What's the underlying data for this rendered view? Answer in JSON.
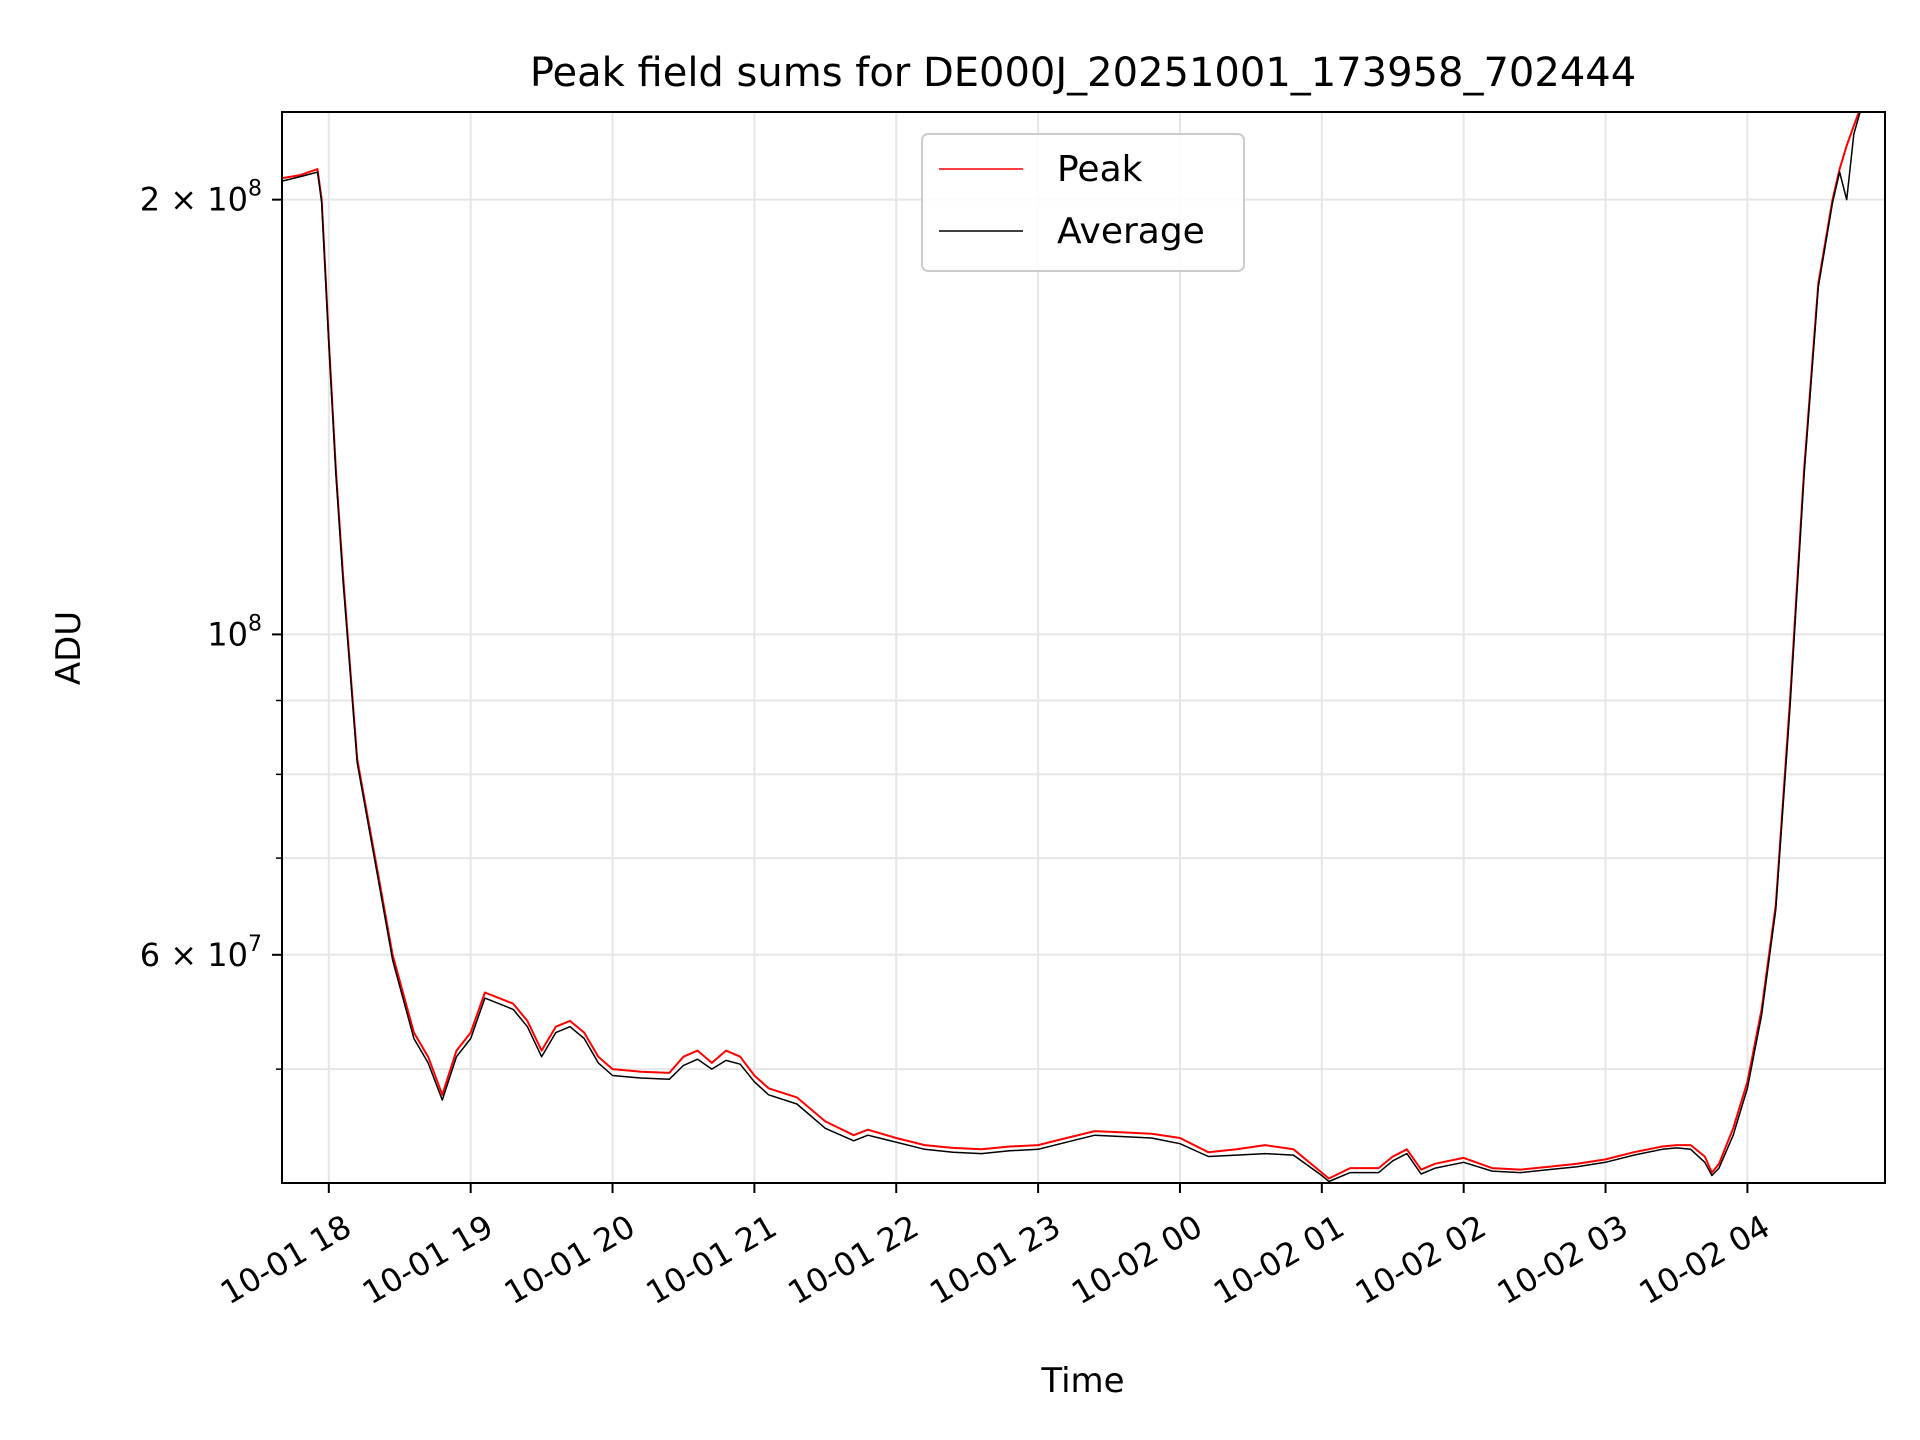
{
  "chart_data": {
    "type": "line",
    "title": "Peak field sums for DE000J_20251001_173958_702444",
    "xlabel": "Time",
    "ylabel": "ADU",
    "x_unit": "hours since 10-01 17:00",
    "xlim": [
      17.67,
      28.97
    ],
    "ylim": [
      41700000.0,
      230000000.0
    ],
    "yscale": "log",
    "grid": true,
    "legend_position": "top-center",
    "x_ticks": [
      {
        "value": 18,
        "label": "10-01 18"
      },
      {
        "value": 19,
        "label": "10-01 19"
      },
      {
        "value": 20,
        "label": "10-01 20"
      },
      {
        "value": 21,
        "label": "10-01 21"
      },
      {
        "value": 22,
        "label": "10-01 22"
      },
      {
        "value": 23,
        "label": "10-01 23"
      },
      {
        "value": 24,
        "label": "10-02 00"
      },
      {
        "value": 25,
        "label": "10-02 01"
      },
      {
        "value": 26,
        "label": "10-02 02"
      },
      {
        "value": 27,
        "label": "10-02 03"
      },
      {
        "value": 28,
        "label": "10-02 04"
      }
    ],
    "y_major_ticks": [
      {
        "value": 60000000,
        "base": "6 × 10",
        "exp": "7"
      },
      {
        "value": 100000000,
        "base": "10",
        "exp": "8"
      },
      {
        "value": 200000000,
        "base": "2 × 10",
        "exp": "8"
      }
    ],
    "y_minor_ticks": [
      50000000,
      70000000,
      80000000,
      90000000
    ],
    "series": [
      {
        "name": "Peak",
        "color": "#ff0000",
        "x": [
          17.67,
          17.8,
          17.92,
          17.95,
          18.0,
          18.05,
          18.1,
          18.2,
          18.25,
          18.35,
          18.45,
          18.6,
          18.7,
          18.8,
          18.9,
          19.0,
          19.1,
          19.2,
          19.3,
          19.4,
          19.5,
          19.6,
          19.7,
          19.8,
          19.9,
          20.0,
          20.2,
          20.4,
          20.5,
          20.6,
          20.7,
          20.8,
          20.9,
          21.0,
          21.1,
          21.3,
          21.5,
          21.7,
          21.8,
          22.0,
          22.2,
          22.4,
          22.6,
          22.8,
          23.0,
          23.2,
          23.4,
          23.6,
          23.8,
          24.0,
          24.2,
          24.4,
          24.6,
          24.8,
          25.0,
          25.05,
          25.2,
          25.4,
          25.5,
          25.6,
          25.7,
          25.8,
          26.0,
          26.2,
          26.4,
          26.6,
          26.8,
          27.0,
          27.2,
          27.4,
          27.5,
          27.6,
          27.7,
          27.75,
          27.8,
          27.9,
          28.0,
          28.1,
          28.2,
          28.3,
          28.4,
          28.5,
          28.6,
          28.65,
          28.7,
          28.75,
          28.8
        ],
        "values": [
          207000000,
          208000000,
          210000000,
          200000000,
          160000000,
          130000000,
          110000000,
          82000000,
          77000000,
          68000000,
          60000000,
          53000000,
          51000000,
          48000000,
          51500000,
          53000000,
          56500000,
          56000000,
          55500000,
          54000000,
          51500000,
          53500000,
          54000000,
          53000000,
          51000000,
          50000000,
          49800000,
          49700000,
          51000000,
          51500000,
          50500000,
          51500000,
          51000000,
          49500000,
          48500000,
          47800000,
          46000000,
          45000000,
          45400000,
          44800000,
          44300000,
          44100000,
          44000000,
          44200000,
          44300000,
          44800000,
          45300000,
          45200000,
          45100000,
          44800000,
          43800000,
          44000000,
          44300000,
          44000000,
          42400000,
          42000000,
          42700000,
          42700000,
          43500000,
          44000000,
          42600000,
          43000000,
          43400000,
          42700000,
          42600000,
          42800000,
          43000000,
          43300000,
          43800000,
          44200000,
          44300000,
          44300000,
          43500000,
          42400000,
          43000000,
          45500000,
          49000000,
          55000000,
          65000000,
          90000000,
          130000000,
          175000000,
          200000000,
          210000000,
          218000000,
          225000000,
          232000000
        ]
      },
      {
        "name": "Average",
        "color": "#000000",
        "x": [
          17.67,
          17.8,
          17.92,
          17.95,
          18.0,
          18.05,
          18.1,
          18.2,
          18.25,
          18.35,
          18.45,
          18.6,
          18.7,
          18.8,
          18.9,
          19.0,
          19.1,
          19.2,
          19.3,
          19.4,
          19.5,
          19.6,
          19.7,
          19.8,
          19.9,
          20.0,
          20.2,
          20.4,
          20.5,
          20.6,
          20.7,
          20.8,
          20.9,
          21.0,
          21.1,
          21.3,
          21.5,
          21.7,
          21.8,
          22.0,
          22.2,
          22.4,
          22.6,
          22.8,
          23.0,
          23.2,
          23.4,
          23.6,
          23.8,
          24.0,
          24.2,
          24.4,
          24.6,
          24.8,
          25.0,
          25.05,
          25.2,
          25.4,
          25.5,
          25.6,
          25.7,
          25.8,
          26.0,
          26.2,
          26.4,
          26.6,
          26.8,
          27.0,
          27.2,
          27.4,
          27.5,
          27.6,
          27.7,
          27.75,
          27.8,
          27.9,
          28.0,
          28.1,
          28.2,
          28.3,
          28.4,
          28.5,
          28.6,
          28.65,
          28.7,
          28.75,
          28.8
        ],
        "values": [
          206000000,
          207500000,
          209000000,
          199000000,
          159000000,
          129000000,
          109000000,
          81500000,
          76500000,
          67500000,
          59500000,
          52500000,
          50500000,
          47600000,
          51000000,
          52500000,
          56000000,
          55500000,
          55000000,
          53500000,
          51000000,
          53000000,
          53500000,
          52500000,
          50500000,
          49500000,
          49300000,
          49200000,
          50300000,
          50800000,
          50000000,
          50700000,
          50400000,
          49000000,
          48000000,
          47300000,
          45500000,
          44600000,
          45000000,
          44500000,
          44000000,
          43800000,
          43700000,
          43900000,
          44000000,
          44500000,
          45000000,
          44900000,
          44800000,
          44400000,
          43500000,
          43600000,
          43700000,
          43600000,
          42200000,
          41800000,
          42400000,
          42400000,
          43200000,
          43700000,
          42300000,
          42700000,
          43100000,
          42500000,
          42400000,
          42600000,
          42800000,
          43100000,
          43600000,
          44000000,
          44100000,
          44000000,
          43100000,
          42200000,
          42700000,
          45000000,
          48500000,
          54500000,
          64500000,
          89000000,
          129000000,
          174000000,
          199000000,
          209000000,
          200000000,
          222000000,
          231000000
        ]
      }
    ]
  }
}
